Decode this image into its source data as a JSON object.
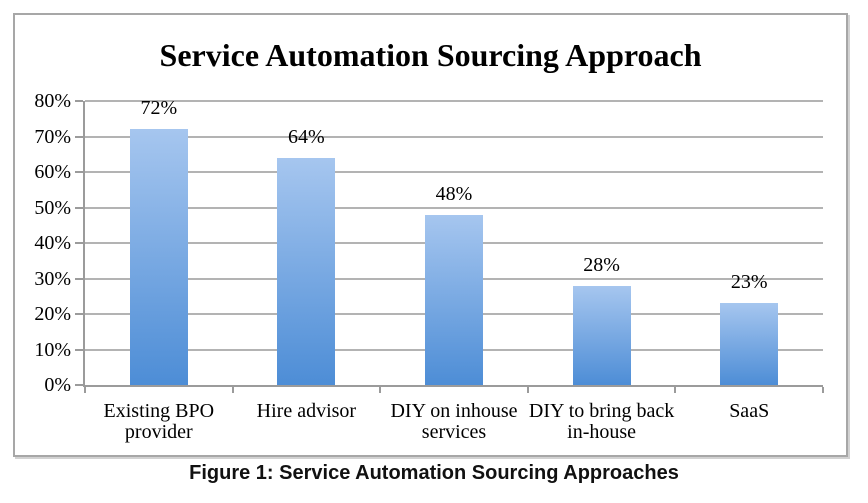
{
  "figure": {
    "caption": "Figure 1: Service Automation Sourcing Approaches"
  },
  "chart_data": {
    "type": "bar",
    "title": "Service Automation Sourcing Approach",
    "categories": [
      "Existing BPO provider",
      "Hire advisor",
      "DIY on inhouse services",
      "DIY to bring back in-house",
      "SaaS"
    ],
    "values": [
      72,
      64,
      48,
      28,
      23
    ],
    "data_labels": [
      "72%",
      "64%",
      "48%",
      "28%",
      "23%"
    ],
    "xlabel": "",
    "ylabel": "",
    "ylim": [
      0,
      80
    ],
    "y_tick_step": 10,
    "y_tick_labels": [
      "0%",
      "10%",
      "20%",
      "30%",
      "40%",
      "50%",
      "60%",
      "70%",
      "80%"
    ],
    "grid": true,
    "legend": "none",
    "colors": {
      "bar_gradient_top": "#a6c6ef",
      "bar_gradient_bottom": "#4d8dd6",
      "gridline": "#b3b3b3",
      "axis": "#9b9b9b",
      "frame_border": "#a7a7a7",
      "text": "#000000"
    }
  }
}
